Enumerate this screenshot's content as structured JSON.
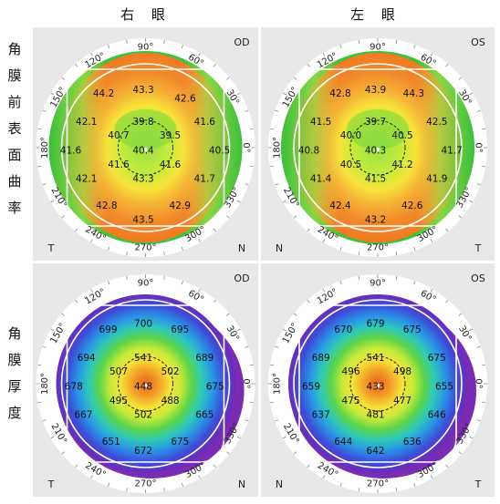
{
  "header": {
    "right_eye": "右 眼",
    "left_eye": "左 眼"
  },
  "rows": {
    "curvature_label": [
      "角",
      "膜",
      "前",
      "表",
      "面",
      "曲",
      "率"
    ],
    "thickness_label": [
      "角",
      "膜",
      "厚",
      "度"
    ]
  },
  "chart_data": [
    {
      "type": "heatmap",
      "eye": "OD",
      "corner_top": "OD",
      "corner_bl": "T",
      "corner_br": "N",
      "angle_labels": [
        "90°",
        "60°",
        "30°",
        "0°",
        "330°",
        "300°",
        "270°",
        "240°",
        "210°",
        "180°",
        "150°",
        "120°"
      ],
      "values": [
        {
          "v": "44.2",
          "x": -0.56,
          "y": -0.72
        },
        {
          "v": "43.3",
          "x": -0.03,
          "y": -0.77
        },
        {
          "v": "42.6",
          "x": 0.53,
          "y": -0.65
        },
        {
          "v": "42.1",
          "x": -0.79,
          "y": -0.34
        },
        {
          "v": "41.6",
          "x": 0.79,
          "y": -0.34
        },
        {
          "v": "39.8",
          "x": -0.03,
          "y": -0.34
        },
        {
          "v": "40.7",
          "x": -0.36,
          "y": -0.16
        },
        {
          "v": "39.5",
          "x": 0.33,
          "y": -0.16
        },
        {
          "v": "41.6",
          "x": -1.0,
          "y": 0.04
        },
        {
          "v": "40.4",
          "x": -0.03,
          "y": 0.04
        },
        {
          "v": "40.5",
          "x": 0.99,
          "y": 0.04
        },
        {
          "v": "41.6",
          "x": -0.36,
          "y": 0.23
        },
        {
          "v": "41.6",
          "x": 0.33,
          "y": 0.23
        },
        {
          "v": "43.3",
          "x": -0.03,
          "y": 0.42
        },
        {
          "v": "42.1",
          "x": -0.79,
          "y": 0.42
        },
        {
          "v": "41.7",
          "x": 0.79,
          "y": 0.42
        },
        {
          "v": "42.8",
          "x": -0.52,
          "y": 0.78
        },
        {
          "v": "42.9",
          "x": 0.46,
          "y": 0.78
        },
        {
          "v": "43.5",
          "x": -0.03,
          "y": 0.97
        }
      ]
    },
    {
      "type": "heatmap",
      "eye": "OS",
      "corner_top": "OS",
      "corner_bl": "N",
      "corner_br": "T",
      "angle_labels": [
        "90°",
        "60°",
        "30°",
        "0°",
        "330°",
        "300°",
        "270°",
        "240°",
        "210°",
        "180°",
        "150°",
        "120°"
      ],
      "values": [
        {
          "v": "42.8",
          "x": -0.5,
          "y": -0.72
        },
        {
          "v": "43.9",
          "x": -0.03,
          "y": -0.77
        },
        {
          "v": "44.3",
          "x": 0.48,
          "y": -0.72
        },
        {
          "v": "41.5",
          "x": -0.76,
          "y": -0.34
        },
        {
          "v": "42.5",
          "x": 0.79,
          "y": -0.34
        },
        {
          "v": "39.7",
          "x": -0.03,
          "y": -0.34
        },
        {
          "v": "40.0",
          "x": -0.36,
          "y": -0.16
        },
        {
          "v": "40.5",
          "x": 0.33,
          "y": -0.16
        },
        {
          "v": "40.8",
          "x": -0.92,
          "y": 0.04
        },
        {
          "v": "40.3",
          "x": -0.03,
          "y": 0.04
        },
        {
          "v": "41.7",
          "x": 0.99,
          "y": 0.04
        },
        {
          "v": "40.5",
          "x": -0.36,
          "y": 0.23
        },
        {
          "v": "41.2",
          "x": 0.33,
          "y": 0.23
        },
        {
          "v": "41.5",
          "x": -0.03,
          "y": 0.42
        },
        {
          "v": "41.4",
          "x": -0.76,
          "y": 0.42
        },
        {
          "v": "41.9",
          "x": 0.79,
          "y": 0.42
        },
        {
          "v": "42.4",
          "x": -0.5,
          "y": 0.78
        },
        {
          "v": "42.6",
          "x": 0.46,
          "y": 0.78
        },
        {
          "v": "43.2",
          "x": -0.03,
          "y": 0.97
        }
      ]
    },
    {
      "type": "heatmap",
      "eye": "OD",
      "corner_top": "OD",
      "corner_bl": "T",
      "corner_br": "N",
      "angle_labels": [
        "90°",
        "60°",
        "30°",
        "0°",
        "330°",
        "300°",
        "270°",
        "240°",
        "210°",
        "180°",
        "150°",
        "120°"
      ],
      "values": [
        {
          "v": "699",
          "x": -0.5,
          "y": -0.72
        },
        {
          "v": "700",
          "x": -0.03,
          "y": -0.8
        },
        {
          "v": "695",
          "x": 0.46,
          "y": -0.72
        },
        {
          "v": "694",
          "x": -0.79,
          "y": -0.34
        },
        {
          "v": "689",
          "x": 0.79,
          "y": -0.34
        },
        {
          "v": "541",
          "x": -0.03,
          "y": -0.34
        },
        {
          "v": "507",
          "x": -0.36,
          "y": -0.16
        },
        {
          "v": "502",
          "x": 0.33,
          "y": -0.16
        },
        {
          "v": "678",
          "x": -0.96,
          "y": 0.04
        },
        {
          "v": "448",
          "x": -0.03,
          "y": 0.04
        },
        {
          "v": "675",
          "x": 0.93,
          "y": 0.04
        },
        {
          "v": "495",
          "x": -0.36,
          "y": 0.23
        },
        {
          "v": "488",
          "x": 0.33,
          "y": 0.23
        },
        {
          "v": "502",
          "x": -0.03,
          "y": 0.42
        },
        {
          "v": "667",
          "x": -0.83,
          "y": 0.42
        },
        {
          "v": "665",
          "x": 0.79,
          "y": 0.42
        },
        {
          "v": "651",
          "x": -0.46,
          "y": 0.78
        },
        {
          "v": "675",
          "x": 0.46,
          "y": 0.78
        },
        {
          "v": "672",
          "x": -0.03,
          "y": 0.9
        }
      ]
    },
    {
      "type": "heatmap",
      "eye": "OS",
      "corner_top": "OS",
      "corner_bl": "N",
      "corner_br": "T",
      "angle_labels": [
        "90°",
        "60°",
        "30°",
        "0°",
        "330°",
        "300°",
        "270°",
        "240°",
        "210°",
        "180°",
        "150°",
        "120°"
      ],
      "values": [
        {
          "v": "670",
          "x": -0.46,
          "y": -0.72
        },
        {
          "v": "679",
          "x": -0.03,
          "y": -0.8
        },
        {
          "v": "675",
          "x": 0.46,
          "y": -0.72
        },
        {
          "v": "689",
          "x": -0.76,
          "y": -0.34
        },
        {
          "v": "675",
          "x": 0.79,
          "y": -0.34
        },
        {
          "v": "541",
          "x": -0.03,
          "y": -0.34
        },
        {
          "v": "496",
          "x": -0.36,
          "y": -0.16
        },
        {
          "v": "498",
          "x": 0.33,
          "y": -0.16
        },
        {
          "v": "659",
          "x": -0.89,
          "y": 0.04
        },
        {
          "v": "433",
          "x": -0.03,
          "y": 0.04
        },
        {
          "v": "655",
          "x": 0.89,
          "y": 0.04
        },
        {
          "v": "475",
          "x": -0.36,
          "y": 0.23
        },
        {
          "v": "477",
          "x": 0.33,
          "y": 0.23
        },
        {
          "v": "481",
          "x": -0.03,
          "y": 0.42
        },
        {
          "v": "637",
          "x": -0.76,
          "y": 0.42
        },
        {
          "v": "646",
          "x": 0.79,
          "y": 0.42
        },
        {
          "v": "644",
          "x": -0.46,
          "y": 0.78
        },
        {
          "v": "636",
          "x": 0.46,
          "y": 0.78
        },
        {
          "v": "642",
          "x": -0.03,
          "y": 0.9
        }
      ]
    }
  ]
}
